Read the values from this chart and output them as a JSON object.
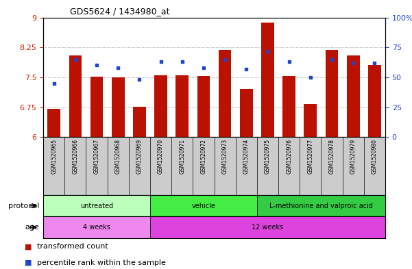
{
  "title": "GDS5624 / 1434980_at",
  "samples": [
    "GSM1520965",
    "GSM1520966",
    "GSM1520967",
    "GSM1520968",
    "GSM1520969",
    "GSM1520970",
    "GSM1520971",
    "GSM1520972",
    "GSM1520973",
    "GSM1520974",
    "GSM1520975",
    "GSM1520976",
    "GSM1520977",
    "GSM1520978",
    "GSM1520979",
    "GSM1520980"
  ],
  "transformed_count": [
    6.71,
    8.05,
    7.52,
    7.5,
    6.77,
    7.55,
    7.55,
    7.53,
    8.18,
    7.2,
    8.88,
    7.53,
    6.83,
    8.18,
    8.05,
    7.8
  ],
  "percentile_rank": [
    45,
    65,
    60,
    58,
    48,
    63,
    63,
    58,
    65,
    57,
    72,
    63,
    50,
    65,
    62,
    62
  ],
  "ylim_left": [
    6,
    9
  ],
  "ylim_right": [
    0,
    100
  ],
  "yticks_left": [
    6,
    6.75,
    7.5,
    8.25,
    9
  ],
  "yticks_right": [
    0,
    25,
    50,
    75,
    100
  ],
  "ytick_labels_left": [
    "6",
    "6.75",
    "7.5",
    "8.25",
    "9"
  ],
  "ytick_labels_right": [
    "0",
    "25",
    "50",
    "75",
    "100%"
  ],
  "bar_color": "#bb1100",
  "dot_color": "#2244cc",
  "grid_color": "#888888",
  "bg_color": "#ffffff",
  "tick_area_color": "#cccccc",
  "protocol_groups": [
    {
      "label": "untreated",
      "start": 0,
      "end": 4,
      "color": "#bbffbb"
    },
    {
      "label": "vehicle",
      "start": 5,
      "end": 9,
      "color": "#44ee44"
    },
    {
      "label": "L-methionine and valproic acid",
      "start": 10,
      "end": 15,
      "color": "#33cc44"
    }
  ],
  "age_groups": [
    {
      "label": "4 weeks",
      "start": 0,
      "end": 4,
      "color": "#ee88ee"
    },
    {
      "label": "12 weeks",
      "start": 5,
      "end": 15,
      "color": "#dd44dd"
    }
  ],
  "legend_items": [
    {
      "label": "transformed count",
      "color": "#bb1100"
    },
    {
      "label": "percentile rank within the sample",
      "color": "#2244cc"
    }
  ]
}
